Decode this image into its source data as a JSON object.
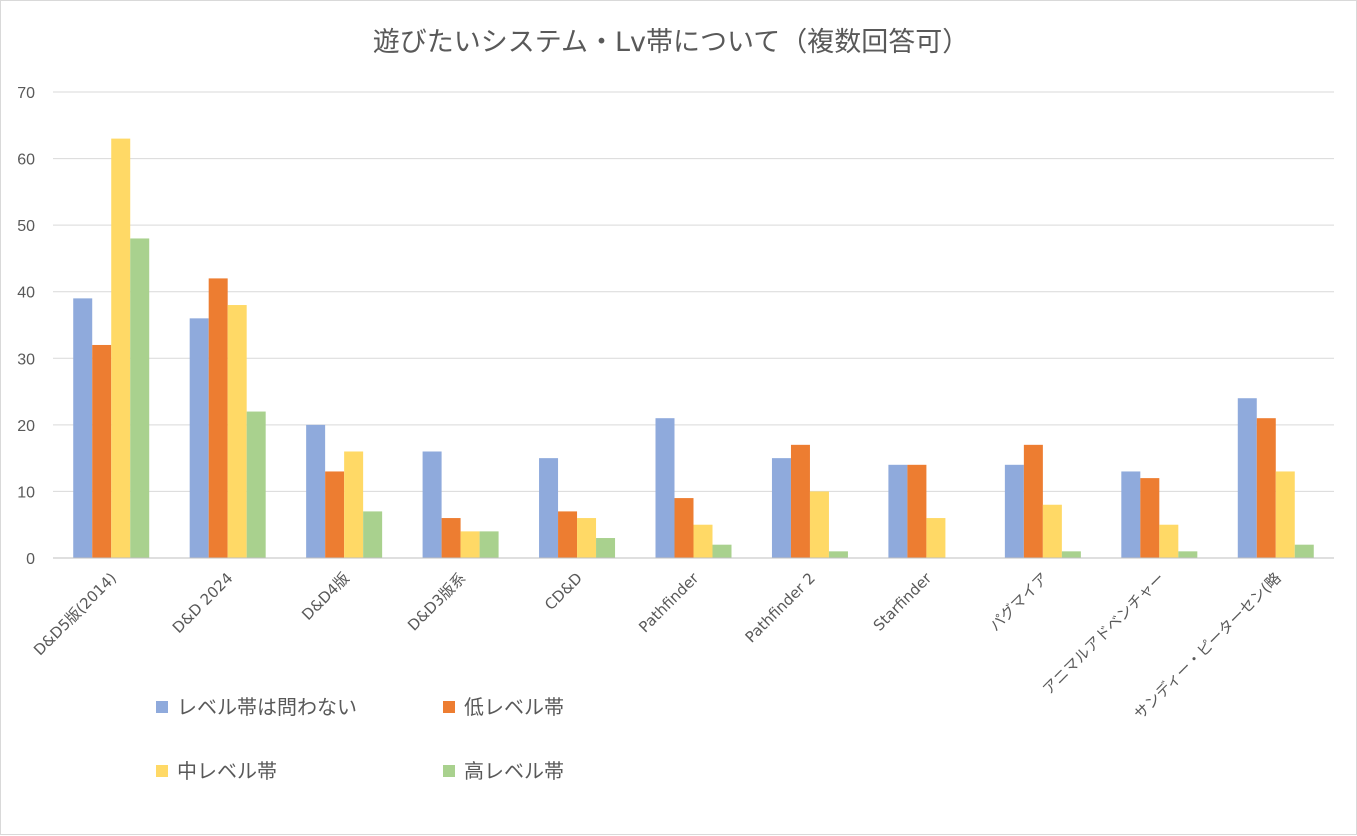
{
  "chart_data": {
    "type": "bar",
    "title": "遊びたいシステム・Lv帯について（複数回答可）",
    "xlabel": "",
    "ylabel": "",
    "ylim": [
      0,
      70
    ],
    "yticks": [
      0,
      10,
      20,
      30,
      40,
      50,
      60,
      70
    ],
    "grid": true,
    "legend_position": "bottom-left",
    "categories": [
      "D&D5版(2014)",
      "D&D 2024",
      "D&D4版",
      "D&D3版系",
      "CD&D",
      "Pathfinder",
      "Pathfinder 2",
      "Starfinder",
      "パグマイア",
      "アニマルアドベンチャー",
      "サンディー・ピーターセン(略"
    ],
    "series": [
      {
        "name": "レベル帯は問わない",
        "color": "#8faadc",
        "values": [
          39,
          36,
          20,
          16,
          15,
          21,
          15,
          14,
          14,
          13,
          24
        ]
      },
      {
        "name": "低レベル帯",
        "color": "#ed7d31",
        "values": [
          32,
          42,
          13,
          6,
          7,
          9,
          17,
          14,
          17,
          12,
          21
        ]
      },
      {
        "name": "中レベル帯",
        "color": "#ffd966",
        "values": [
          63,
          38,
          16,
          4,
          6,
          5,
          10,
          6,
          8,
          5,
          13
        ]
      },
      {
        "name": "高レベル帯",
        "color": "#a9d18e",
        "values": [
          48,
          22,
          7,
          4,
          3,
          2,
          1,
          0,
          1,
          1,
          2
        ]
      }
    ]
  }
}
